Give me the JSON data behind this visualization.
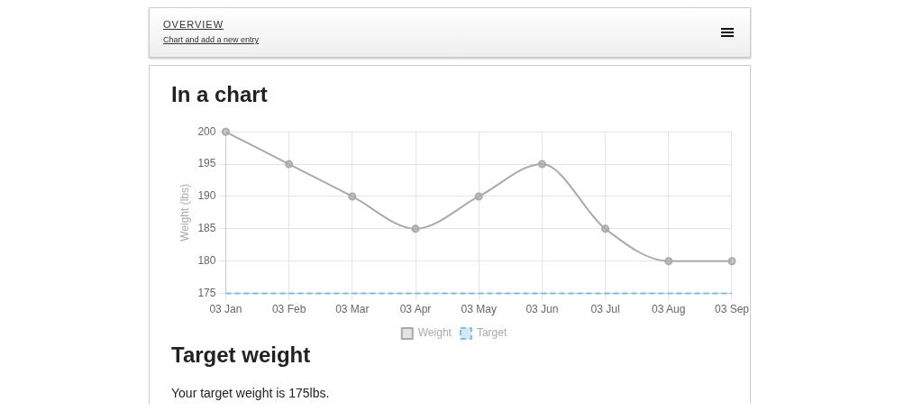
{
  "chart_data": {
    "type": "line",
    "title": "In a chart",
    "ylabel": "Weight (lbs)",
    "categories": [
      "03 Jan",
      "03 Feb",
      "03 Mar",
      "03 Apr",
      "03 May",
      "03 Jun",
      "03 Jul",
      "03 Aug",
      "03 Sep"
    ],
    "series": [
      {
        "name": "Weight",
        "color": "#aaaaaa",
        "values": [
          200,
          195,
          190,
          185,
          190,
          195,
          185,
          180,
          180
        ],
        "marker": "circle",
        "line_style": "solid"
      },
      {
        "name": "Target",
        "color": "#7fbde0",
        "values": [
          175,
          175,
          175,
          175,
          175,
          175,
          175,
          175,
          175
        ],
        "marker": "none",
        "line_style": "dashed"
      }
    ],
    "ylim": [
      175,
      200
    ],
    "yticks": [
      175,
      180,
      185,
      190,
      195,
      200
    ],
    "grid": true,
    "legend": "bottom",
    "annotations": [
      "OVERVIEW",
      "Chart and add a new entry",
      "Target weight",
      "Your target weight is 175lbs."
    ]
  }
}
